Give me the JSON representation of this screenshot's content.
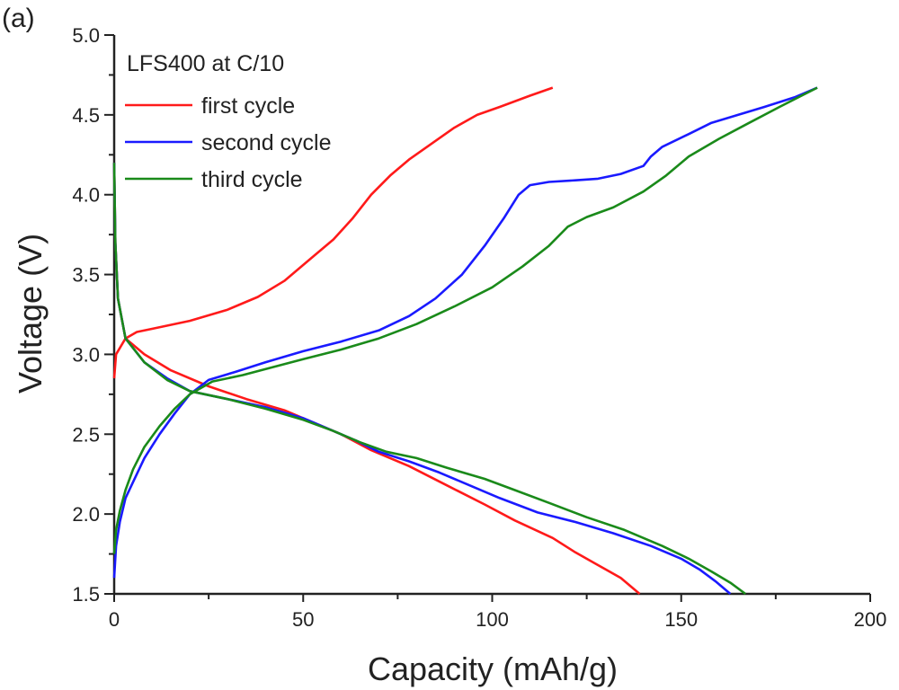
{
  "panel_label": "(a)",
  "chart_data": {
    "type": "line",
    "xlabel": "Capacity (mAh/g)",
    "ylabel": "Voltage (V)",
    "xlim": [
      0,
      200
    ],
    "ylim": [
      1.5,
      5.0
    ],
    "xticks": [
      0,
      50,
      100,
      150,
      200
    ],
    "yticks": [
      1.5,
      2.0,
      2.5,
      3.0,
      3.5,
      4.0,
      4.5,
      5.0
    ],
    "grid": false,
    "legend_title": "LFS400 at C/10",
    "legend_position": "top-left",
    "series": [
      {
        "name": "first cycle",
        "color": "#ff1a1a",
        "segments": [
          [
            [
              0,
              2.85
            ],
            [
              0.5,
              3.0
            ],
            [
              3,
              3.1
            ],
            [
              6,
              3.14
            ],
            [
              10,
              3.16
            ],
            [
              20,
              3.21
            ],
            [
              30,
              3.28
            ],
            [
              38,
              3.36
            ],
            [
              45,
              3.46
            ],
            [
              52,
              3.6
            ],
            [
              58,
              3.72
            ],
            [
              63,
              3.85
            ],
            [
              68,
              4.0
            ],
            [
              73,
              4.12
            ],
            [
              78,
              4.22
            ],
            [
              84,
              4.32
            ],
            [
              90,
              4.42
            ],
            [
              96,
              4.5
            ],
            [
              102,
              4.55
            ],
            [
              110,
              4.62
            ],
            [
              116,
              4.67
            ]
          ],
          [
            [
              0,
              4.2
            ],
            [
              0.3,
              3.7
            ],
            [
              1,
              3.35
            ],
            [
              3,
              3.1
            ],
            [
              8,
              3.0
            ],
            [
              15,
              2.9
            ],
            [
              25,
              2.8
            ],
            [
              35,
              2.72
            ],
            [
              45,
              2.65
            ],
            [
              52,
              2.58
            ],
            [
              60,
              2.5
            ],
            [
              68,
              2.4
            ],
            [
              78,
              2.3
            ],
            [
              88,
              2.18
            ],
            [
              98,
              2.06
            ],
            [
              106,
              1.96
            ],
            [
              116,
              1.85
            ],
            [
              122,
              1.76
            ],
            [
              128,
              1.68
            ],
            [
              134,
              1.6
            ],
            [
              139,
              1.5
            ]
          ]
        ]
      },
      {
        "name": "second cycle",
        "color": "#1a1aff",
        "segments": [
          [
            [
              0,
              1.6
            ],
            [
              0.5,
              1.8
            ],
            [
              1.5,
              1.95
            ],
            [
              3,
              2.1
            ],
            [
              5,
              2.2
            ],
            [
              8,
              2.35
            ],
            [
              12,
              2.5
            ],
            [
              16,
              2.63
            ],
            [
              20,
              2.75
            ],
            [
              25,
              2.84
            ],
            [
              32,
              2.89
            ],
            [
              40,
              2.95
            ],
            [
              50,
              3.02
            ],
            [
              60,
              3.08
            ],
            [
              70,
              3.15
            ],
            [
              78,
              3.24
            ],
            [
              85,
              3.35
            ],
            [
              92,
              3.5
            ],
            [
              98,
              3.68
            ],
            [
              103,
              3.85
            ],
            [
              107,
              4.0
            ],
            [
              110,
              4.06
            ],
            [
              115,
              4.08
            ],
            [
              122,
              4.09
            ],
            [
              128,
              4.1
            ],
            [
              134,
              4.13
            ],
            [
              140,
              4.18
            ],
            [
              142,
              4.24
            ],
            [
              145,
              4.3
            ],
            [
              152,
              4.38
            ],
            [
              158,
              4.45
            ],
            [
              165,
              4.5
            ],
            [
              172,
              4.55
            ],
            [
              180,
              4.61
            ],
            [
              186,
              4.67
            ]
          ],
          [
            [
              0,
              4.2
            ],
            [
              0.3,
              3.7
            ],
            [
              1,
              3.35
            ],
            [
              3,
              3.1
            ],
            [
              8,
              2.95
            ],
            [
              14,
              2.85
            ],
            [
              20,
              2.77
            ],
            [
              30,
              2.72
            ],
            [
              40,
              2.67
            ],
            [
              50,
              2.6
            ],
            [
              58,
              2.52
            ],
            [
              64,
              2.46
            ],
            [
              70,
              2.39
            ],
            [
              78,
              2.33
            ],
            [
              86,
              2.26
            ],
            [
              94,
              2.18
            ],
            [
              102,
              2.1
            ],
            [
              112,
              2.01
            ],
            [
              122,
              1.95
            ],
            [
              132,
              1.88
            ],
            [
              142,
              1.8
            ],
            [
              150,
              1.72
            ],
            [
              155,
              1.65
            ],
            [
              159,
              1.58
            ],
            [
              163,
              1.5
            ]
          ]
        ]
      },
      {
        "name": "third cycle",
        "color": "#1a8a1a",
        "segments": [
          [
            [
              0,
              1.75
            ],
            [
              0.5,
              1.9
            ],
            [
              1.5,
              2.02
            ],
            [
              3,
              2.15
            ],
            [
              5,
              2.28
            ],
            [
              8,
              2.42
            ],
            [
              12,
              2.55
            ],
            [
              16,
              2.66
            ],
            [
              20,
              2.75
            ],
            [
              26,
              2.83
            ],
            [
              34,
              2.87
            ],
            [
              42,
              2.92
            ],
            [
              50,
              2.97
            ],
            [
              60,
              3.03
            ],
            [
              70,
              3.1
            ],
            [
              80,
              3.19
            ],
            [
              90,
              3.3
            ],
            [
              100,
              3.42
            ],
            [
              108,
              3.55
            ],
            [
              115,
              3.68
            ],
            [
              120,
              3.8
            ],
            [
              125,
              3.86
            ],
            [
              132,
              3.92
            ],
            [
              140,
              4.02
            ],
            [
              146,
              4.12
            ],
            [
              152,
              4.24
            ],
            [
              160,
              4.35
            ],
            [
              168,
              4.45
            ],
            [
              176,
              4.55
            ],
            [
              186,
              4.67
            ]
          ],
          [
            [
              0,
              4.2
            ],
            [
              0.3,
              3.7
            ],
            [
              1,
              3.35
            ],
            [
              3,
              3.1
            ],
            [
              8,
              2.95
            ],
            [
              14,
              2.84
            ],
            [
              20,
              2.77
            ],
            [
              30,
              2.72
            ],
            [
              40,
              2.66
            ],
            [
              50,
              2.59
            ],
            [
              58,
              2.52
            ],
            [
              65,
              2.45
            ],
            [
              72,
              2.39
            ],
            [
              80,
              2.35
            ],
            [
              88,
              2.29
            ],
            [
              98,
              2.22
            ],
            [
              106,
              2.15
            ],
            [
              115,
              2.07
            ],
            [
              125,
              1.98
            ],
            [
              135,
              1.9
            ],
            [
              145,
              1.8
            ],
            [
              152,
              1.72
            ],
            [
              158,
              1.64
            ],
            [
              163,
              1.57
            ],
            [
              167,
              1.5
            ]
          ]
        ]
      }
    ]
  }
}
